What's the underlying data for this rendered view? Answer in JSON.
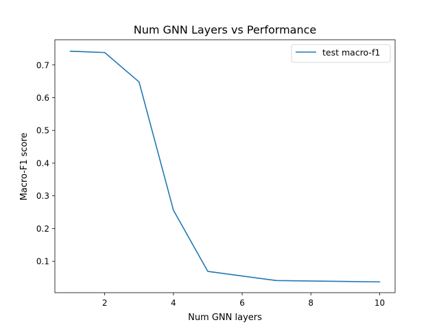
{
  "chart_data": {
    "type": "line",
    "title": "Num GNN Layers vs Performance",
    "xlabel": "Num GNN layers",
    "ylabel": "Macro-F1 score",
    "xlim": [
      0.55,
      10.45
    ],
    "ylim": [
      0.004,
      0.777
    ],
    "xticks": [
      2,
      4,
      6,
      8,
      10
    ],
    "yticks": [
      0.1,
      0.2,
      0.3,
      0.4,
      0.5,
      0.6,
      0.7
    ],
    "grid": false,
    "legend_position": "top-right",
    "series": [
      {
        "name": "test macro-f1",
        "color": "#1f77b4",
        "x": [
          1,
          2,
          3,
          4,
          5,
          7,
          10
        ],
        "y": [
          0.742,
          0.738,
          0.648,
          0.256,
          0.069,
          0.041,
          0.037
        ]
      }
    ]
  }
}
